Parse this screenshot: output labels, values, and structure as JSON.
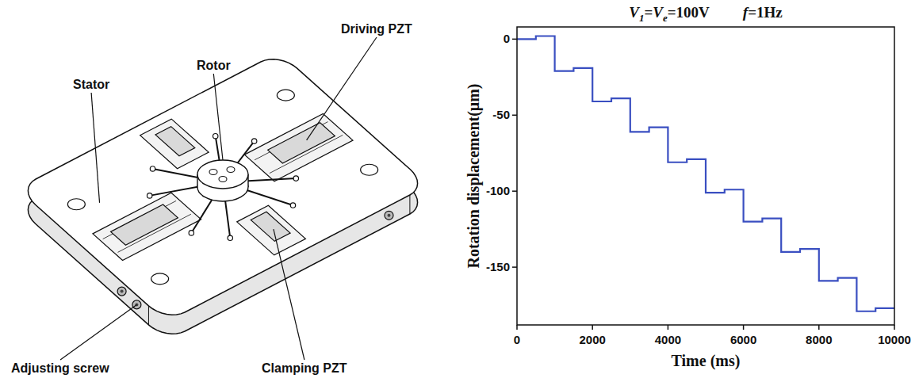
{
  "chart_data": {
    "type": "line",
    "title": "V1=Ve=100V   f=1Hz",
    "x_label": "Time (ms)",
    "y_label": "Rotation displacement(μm)",
    "x": [
      0,
      500,
      500,
      1000,
      1000,
      1500,
      1500,
      2000,
      2000,
      2500,
      2500,
      3000,
      3000,
      3500,
      3500,
      4000,
      4000,
      4500,
      4500,
      5000,
      5000,
      5500,
      5500,
      6000,
      6000,
      6500,
      6500,
      7000,
      7000,
      7500,
      7500,
      8000,
      8000,
      8500,
      8500,
      9000,
      9000,
      9500,
      9500,
      10000
    ],
    "values": [
      0,
      0,
      2,
      2,
      -21,
      -21,
      -19,
      -19,
      -41,
      -41,
      -39,
      -39,
      -61,
      -61,
      -58,
      -58,
      -81,
      -81,
      -79,
      -79,
      -101,
      -101,
      -99,
      -99,
      -120,
      -120,
      -118,
      -118,
      -140,
      -140,
      -138,
      -138,
      -159,
      -159,
      -157,
      -157,
      -179,
      -179,
      -177,
      -177
    ],
    "color": "#3a4fc1",
    "line_style": "solid",
    "xlim": [
      0,
      10000
    ],
    "xticks": [
      0,
      2000,
      4000,
      6000,
      8000,
      10000
    ],
    "ylim": [
      -188,
      8
    ],
    "yticks": [
      -150,
      -100,
      -50,
      0
    ],
    "grid": false
  },
  "diagram": {
    "labels": [
      "Driving PZT",
      "Rotor",
      "Stator",
      "Adjusting screw",
      "Clamping PZT"
    ]
  }
}
